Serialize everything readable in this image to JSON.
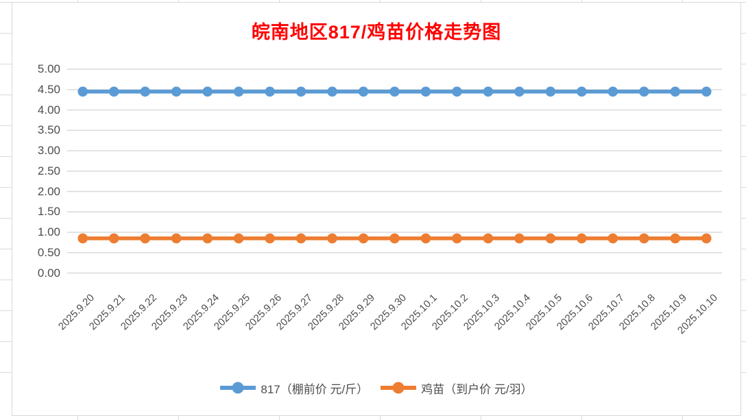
{
  "title": {
    "text": "皖南地区817/鸡苗价格走势图",
    "color": "#FF0000"
  },
  "chart_data": {
    "type": "line",
    "title": "皖南地区817/鸡苗价格走势图",
    "categories": [
      "2025.9.20",
      "2025.9.21",
      "2025.9.22",
      "2025.9.23",
      "2025.9.24",
      "2025.9.25",
      "2025.9.26",
      "2025.9.27",
      "2025.9.28",
      "2025.9.29",
      "2025.9.30",
      "2025.10.1",
      "2025.10.2",
      "2025.10.3",
      "2025.10.4",
      "2025.10.5",
      "2025.10.6",
      "2025.10.7",
      "2025.10.8",
      "2025.10.9",
      "2025.10.10"
    ],
    "series": [
      {
        "name": "817（棚前价 元/斤）",
        "color": "#5B9BD5",
        "values": [
          4.45,
          4.45,
          4.45,
          4.45,
          4.45,
          4.45,
          4.45,
          4.45,
          4.45,
          4.45,
          4.45,
          4.45,
          4.45,
          4.45,
          4.45,
          4.45,
          4.45,
          4.45,
          4.45,
          4.45,
          4.45
        ]
      },
      {
        "name": "鸡苗（到户价 元/羽）",
        "color": "#ED7D31",
        "values": [
          0.85,
          0.85,
          0.85,
          0.85,
          0.85,
          0.85,
          0.85,
          0.85,
          0.85,
          0.85,
          0.85,
          0.85,
          0.85,
          0.85,
          0.85,
          0.85,
          0.85,
          0.85,
          0.85,
          0.85,
          0.85
        ]
      }
    ],
    "xlabel": "",
    "ylabel": "",
    "ylim": [
      0,
      5
    ],
    "ytick_step": 0.5,
    "ytick_labels": [
      "0.00",
      "0.50",
      "1.00",
      "1.50",
      "2.00",
      "2.50",
      "3.00",
      "3.50",
      "4.00",
      "4.50",
      "5.00"
    ],
    "x_tick_rotation": 45,
    "grid": true,
    "gridline_color": "#D9D9D9",
    "axis_label_color": "#4D4D4D",
    "legend_position": "bottom"
  }
}
